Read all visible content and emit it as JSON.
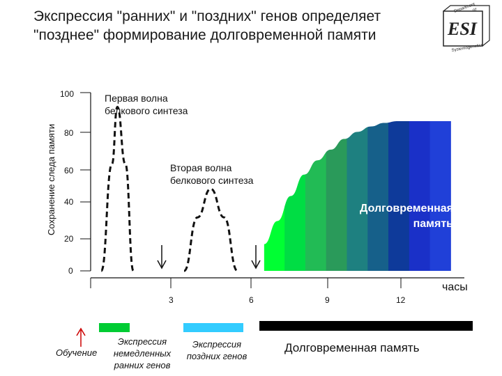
{
  "title": "Экспрессия \"ранних\" и \"поздних\" генов определяет\n\"позднее\" формирование долговременной памяти",
  "logo": {
    "lines": [
      "Department",
      "of",
      "ESI",
      "Systemogenetics"
    ]
  },
  "chart_data": {
    "type": "area",
    "ylabel": "Сохранение следа памяти",
    "xlabel": "часы",
    "ylim": [
      0,
      100
    ],
    "y_ticks": [
      "100",
      "80",
      "60",
      "40",
      "20",
      "0"
    ],
    "x_ticks": [
      "3",
      "6",
      "9",
      "12"
    ],
    "annotations": {
      "first_wave": "Первая волна\n   белкового синтеза",
      "second_wave": "Вторая волна\n   белкового синтеза",
      "long_term": "Долговременная\nпамять"
    },
    "series": [
      {
        "style": "dashed",
        "x": [
          0.4,
          0.8,
          1.0,
          1.3,
          1.6
        ],
        "y": [
          0,
          60,
          92,
          60,
          0
        ]
      },
      {
        "style": "dashed",
        "x": [
          3.5,
          4.0,
          4.5,
          5.0,
          5.5
        ],
        "y": [
          0,
          30,
          46,
          30,
          0
        ]
      },
      {
        "style": "filled-gradient",
        "x": [
          6.5,
          7.0,
          7.5,
          8.0,
          8.5,
          9.0,
          9.5,
          10.0,
          10.5,
          11.0,
          11.5,
          12.0,
          12.5,
          13.5
        ],
        "y": [
          15,
          28,
          42,
          54,
          62,
          68,
          74,
          78,
          81,
          83,
          84,
          84,
          84,
          84
        ]
      }
    ]
  },
  "legend": {
    "learning": "Обучение",
    "early_genes": "Экспрессия\nнемедленных\nранних генов",
    "late_genes": "Экспрессия\nпоздних генов",
    "long_term_memory": "Долговременная память",
    "colors": {
      "early": "#00cc33",
      "late": "#33ccff",
      "ltm": "#000000"
    }
  },
  "colors": {
    "gradient": [
      "#00ff33",
      "#00dd44",
      "#22bb55",
      "#2a9a5a",
      "#1e8080",
      "#16608a",
      "#0e3a9a",
      "#1a30c8",
      "#2040d8"
    ],
    "arrow": "#cc0000"
  }
}
